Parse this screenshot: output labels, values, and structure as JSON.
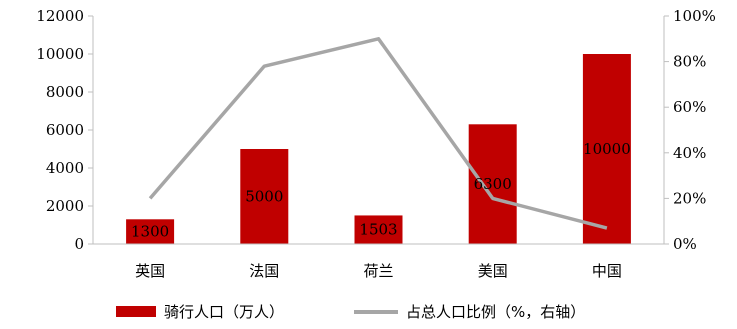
{
  "chart_data": {
    "type": "bar",
    "categories": [
      "英国",
      "法国",
      "荷兰",
      "美国",
      "中国"
    ],
    "series": [
      {
        "name": "骑行人口（万人）",
        "type": "bar",
        "axis": "left",
        "values": [
          1300,
          5000,
          1503,
          6300,
          10000
        ],
        "data_labels": [
          "1300",
          "5000",
          "1503",
          "6300",
          "10000"
        ],
        "color": "#c00000"
      },
      {
        "name": "占总人口比例（%，右轴）",
        "type": "line",
        "axis": "right",
        "values": [
          20,
          78,
          90,
          20,
          7
        ],
        "color": "#a6a6a6"
      }
    ],
    "left_axis": {
      "ylim": [
        0,
        12000
      ],
      "ticks": [
        "0",
        "2000",
        "4000",
        "6000",
        "8000",
        "10000",
        "12000"
      ]
    },
    "right_axis": {
      "ylim": [
        0,
        100
      ],
      "ticks": [
        "0%",
        "20%",
        "40%",
        "60%",
        "80%",
        "100%"
      ]
    },
    "grid": false,
    "legend_position": "bottom"
  }
}
